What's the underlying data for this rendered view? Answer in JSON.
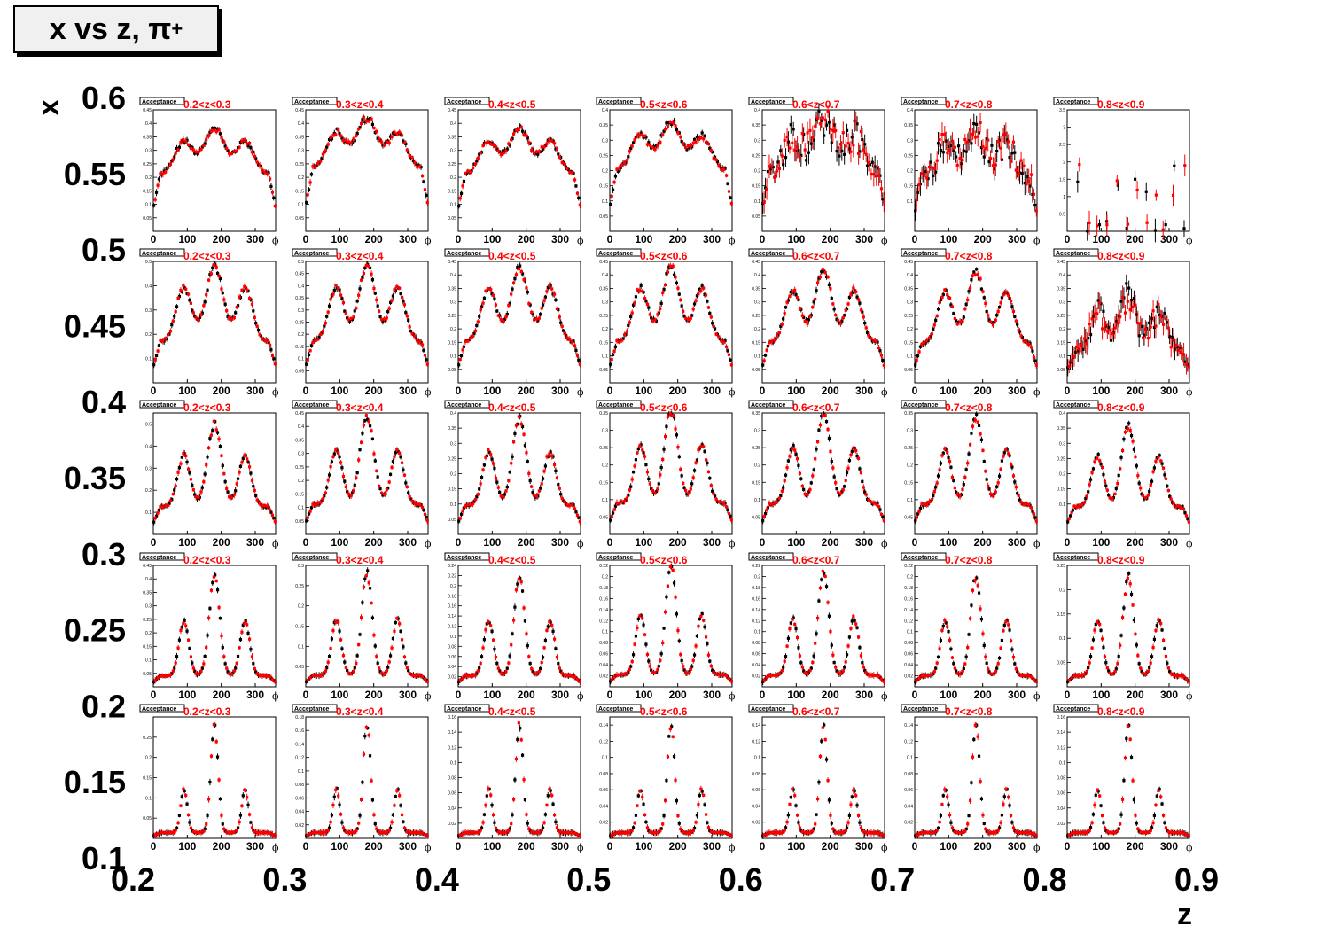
{
  "title": {
    "main": "x vs z, π",
    "sup": "+"
  },
  "chart_data": {
    "type": "scatter",
    "title": "x vs z, π+",
    "xlabel": "z",
    "ylabel": "x",
    "xlim": [
      0.2,
      0.9
    ],
    "ylim": [
      0.1,
      0.6
    ],
    "x_ticks": [
      "0.2",
      "0.3",
      "0.4",
      "0.5",
      "0.6",
      "0.7",
      "0.8",
      "0.9"
    ],
    "y_ticks": [
      "0.6",
      "0.55",
      "0.5",
      "0.45",
      "0.4",
      "0.35",
      "0.3",
      "0.25",
      "0.2",
      "0.15",
      "0.1"
    ],
    "pad_label": "Acceptance",
    "pad_xlabel": "ϕ",
    "pad_x_ticks": [
      "0",
      "100",
      "200",
      "300"
    ],
    "z_bins": [
      "0.2<z<0.3",
      "0.3<z<0.4",
      "0.4<z<0.5",
      "0.5<z<0.6",
      "0.6<z<0.7",
      "0.7<z<0.8",
      "0.8<z<0.9"
    ],
    "series_colors": {
      "black": "#000000",
      "red": "#ff0000"
    },
    "rows": [
      {
        "x_bin": [
          0.5,
          0.6
        ],
        "ymax": [
          0.45,
          0.45,
          0.45,
          0.4,
          0.4,
          0.4,
          3.5
        ],
        "peaks": [
          0.38,
          0.42,
          0.38,
          0.36,
          0.36,
          0.32,
          2.0
        ],
        "yticks": [
          [
            "0.05",
            "0.1",
            "0.15",
            "0.2",
            "0.25",
            "0.3",
            "0.35",
            "0.4",
            "0.45"
          ],
          [
            "0.05",
            "0.1",
            "0.15",
            "0.2",
            "0.25",
            "0.3",
            "0.35",
            "0.4",
            "0.45"
          ],
          [
            "0.05",
            "0.1",
            "0.15",
            "0.2",
            "0.25",
            "0.3",
            "0.35",
            "0.4",
            "0.45"
          ],
          [
            "0.05",
            "0.1",
            "0.15",
            "0.2",
            "0.25",
            "0.3",
            "0.35",
            "0.4"
          ],
          [
            "0.05",
            "0.1",
            "0.15",
            "0.2",
            "0.25",
            "0.3",
            "0.35",
            "0.4"
          ],
          [
            "0.1",
            "0.15",
            "0.2",
            "0.25",
            "0.3",
            "0.35",
            "0.4"
          ],
          [
            "0.5",
            "1",
            "1.5",
            "2",
            "2.5",
            "3",
            "3.5"
          ]
        ]
      },
      {
        "x_bin": [
          0.4,
          0.5
        ],
        "ymax": [
          0.5,
          0.5,
          0.45,
          0.45,
          0.45,
          0.45,
          0.45
        ],
        "peaks": [
          0.48,
          0.48,
          0.43,
          0.43,
          0.42,
          0.41,
          0.32
        ],
        "yticks": [
          [
            "0.1",
            "0.2",
            "0.3",
            "0.4",
            "0.5"
          ],
          [
            "0.05",
            "0.1",
            "0.15",
            "0.2",
            "0.25",
            "0.3",
            "0.35",
            "0.4",
            "0.45",
            "0.5"
          ],
          [
            "0.05",
            "0.1",
            "0.15",
            "0.2",
            "0.25",
            "0.3",
            "0.35",
            "0.4",
            "0.45"
          ],
          [
            "0.05",
            "0.1",
            "0.15",
            "0.2",
            "0.25",
            "0.3",
            "0.35",
            "0.4",
            "0.45"
          ],
          [
            "0.05",
            "0.1",
            "0.15",
            "0.2",
            "0.25",
            "0.3",
            "0.35",
            "0.4",
            "0.45"
          ],
          [
            "0.05",
            "0.1",
            "0.15",
            "0.2",
            "0.25",
            "0.3",
            "0.35",
            "0.4",
            "0.45"
          ],
          [
            "0.05",
            "0.1",
            "0.15",
            "0.2",
            "0.25",
            "0.3",
            "0.35",
            "0.4",
            "0.45"
          ]
        ]
      },
      {
        "x_bin": [
          0.3,
          0.4
        ],
        "ymax": [
          0.55,
          0.45,
          0.4,
          0.35,
          0.35,
          0.35,
          0.4
        ],
        "peaks": [
          0.5,
          0.44,
          0.38,
          0.36,
          0.35,
          0.34,
          0.36
        ],
        "yticks": [
          [
            "0.1",
            "0.2",
            "0.3",
            "0.4",
            "0.5"
          ],
          [
            "0.05",
            "0.1",
            "0.15",
            "0.2",
            "0.25",
            "0.3",
            "0.35",
            "0.4",
            "0.45"
          ],
          [
            "0.05",
            "0.1",
            "0.15",
            "0.2",
            "0.25",
            "0.3",
            "0.35",
            "0.4"
          ],
          [
            "0.05",
            "0.1",
            "0.15",
            "0.2",
            "0.25",
            "0.3",
            "0.35"
          ],
          [
            "0.05",
            "0.1",
            "0.15",
            "0.2",
            "0.25",
            "0.3",
            "0.35"
          ],
          [
            "0.05",
            "0.1",
            "0.15",
            "0.2",
            "0.25",
            "0.3",
            "0.35"
          ],
          [
            "0.1",
            "0.15",
            "0.2",
            "0.25",
            "0.3",
            "0.35",
            "0.4"
          ]
        ]
      },
      {
        "x_bin": [
          0.2,
          0.3
        ],
        "ymax": [
          0.45,
          0.3,
          0.24,
          0.22,
          0.22,
          0.22,
          0.25
        ],
        "peaks": [
          0.41,
          0.28,
          0.22,
          0.22,
          0.21,
          0.2,
          0.23
        ],
        "yticks": [
          [
            "0.05",
            "0.1",
            "0.15",
            "0.2",
            "0.25",
            "0.3",
            "0.35",
            "0.4",
            "0.45"
          ],
          [
            "0.05",
            "0.1",
            "0.15",
            "0.2",
            "0.25",
            "0.3"
          ],
          [
            "0.02",
            "0.04",
            "0.06",
            "0.08",
            "0.1",
            "0.12",
            "0.14",
            "0.16",
            "0.18",
            "0.2",
            "0.22",
            "0.24"
          ],
          [
            "0.02",
            "0.04",
            "0.06",
            "0.08",
            "0.1",
            "0.12",
            "0.14",
            "0.16",
            "0.18",
            "0.2",
            "0.22"
          ],
          [
            "0.02",
            "0.04",
            "0.06",
            "0.08",
            "0.1",
            "0.12",
            "0.14",
            "0.16",
            "0.18",
            "0.2",
            "0.22"
          ],
          [
            "0.02",
            "0.04",
            "0.06",
            "0.08",
            "0.1",
            "0.12",
            "0.14",
            "0.16",
            "0.18",
            "0.2",
            "0.22"
          ],
          [
            "0.05",
            "0.1",
            "0.15",
            "0.2",
            "0.25"
          ]
        ]
      },
      {
        "x_bin": [
          0.1,
          0.2
        ],
        "ymax": [
          0.3,
          0.18,
          0.16,
          0.15,
          0.15,
          0.15,
          0.16
        ],
        "peaks": [
          0.28,
          0.17,
          0.15,
          0.14,
          0.14,
          0.14,
          0.15
        ],
        "yticks": [
          [
            "0.05",
            "0.1",
            "0.15",
            "0.2",
            "0.25"
          ],
          [
            "0.02",
            "0.04",
            "0.06",
            "0.08",
            "0.1",
            "0.12",
            "0.14",
            "0.16",
            "0.18"
          ],
          [
            "0.02",
            "0.04",
            "0.06",
            "0.08",
            "0.1",
            "0.12",
            "0.14",
            "0.16"
          ],
          [
            "0.02",
            "0.04",
            "0.06",
            "0.08",
            "0.1",
            "0.12",
            "0.14"
          ],
          [
            "0.02",
            "0.04",
            "0.06",
            "0.08",
            "0.1",
            "0.12",
            "0.14"
          ],
          [
            "0.02",
            "0.04",
            "0.06",
            "0.08",
            "0.1",
            "0.12",
            "0.14"
          ],
          [
            "0.02",
            "0.04",
            "0.06",
            "0.08",
            "0.1",
            "0.12",
            "0.14",
            "0.16"
          ]
        ]
      }
    ]
  }
}
